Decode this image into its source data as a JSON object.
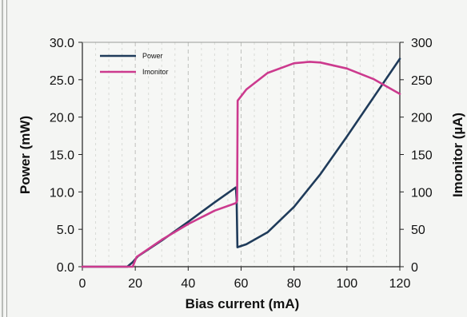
{
  "chart_data": {
    "type": "line",
    "title": "",
    "xlabel": "Bias current (mA)",
    "ylabel": "Power (mW)",
    "y2label": "Imonitor (µA)",
    "xlim": [
      0,
      120
    ],
    "ylim": [
      0,
      30
    ],
    "y2lim": [
      0,
      300
    ],
    "x_ticks": [
      "0",
      "20",
      "40",
      "60",
      "80",
      "100",
      "120"
    ],
    "y_ticks": [
      "0.0",
      "5.0",
      "10.0",
      "15.0",
      "20.0",
      "25.0",
      "30.0"
    ],
    "y2_ticks": [
      "0",
      "50",
      "100",
      "150",
      "200",
      "250",
      "300"
    ],
    "grid": "vertical dashed",
    "legend_position": "top-left",
    "series": [
      {
        "name": "Power",
        "axis": "left",
        "color": "#1f3b5a",
        "points": [
          [
            0,
            0
          ],
          [
            17,
            0
          ],
          [
            19,
            0.6
          ],
          [
            21,
            1.4
          ],
          [
            30,
            3.5
          ],
          [
            40,
            6.0
          ],
          [
            50,
            8.6
          ],
          [
            58,
            10.6
          ],
          [
            58.3,
            9.0
          ],
          [
            58.6,
            2.6
          ],
          [
            62,
            3.0
          ],
          [
            70,
            4.6
          ],
          [
            80,
            8.0
          ],
          [
            90,
            12.4
          ],
          [
            100,
            17.4
          ],
          [
            110,
            22.6
          ],
          [
            120,
            27.8
          ]
        ]
      },
      {
        "name": "Imonitor",
        "axis": "right",
        "color": "#cc3a8e",
        "points": [
          [
            0,
            0
          ],
          [
            19,
            0
          ],
          [
            20.5,
            13
          ],
          [
            30,
            36
          ],
          [
            40,
            57
          ],
          [
            50,
            75
          ],
          [
            58,
            85
          ],
          [
            58.5,
            88
          ],
          [
            58.7,
            222
          ],
          [
            62,
            237
          ],
          [
            70,
            259
          ],
          [
            80,
            272
          ],
          [
            86,
            274
          ],
          [
            90,
            273
          ],
          [
            100,
            265
          ],
          [
            110,
            251
          ],
          [
            120,
            231
          ]
        ]
      }
    ]
  }
}
